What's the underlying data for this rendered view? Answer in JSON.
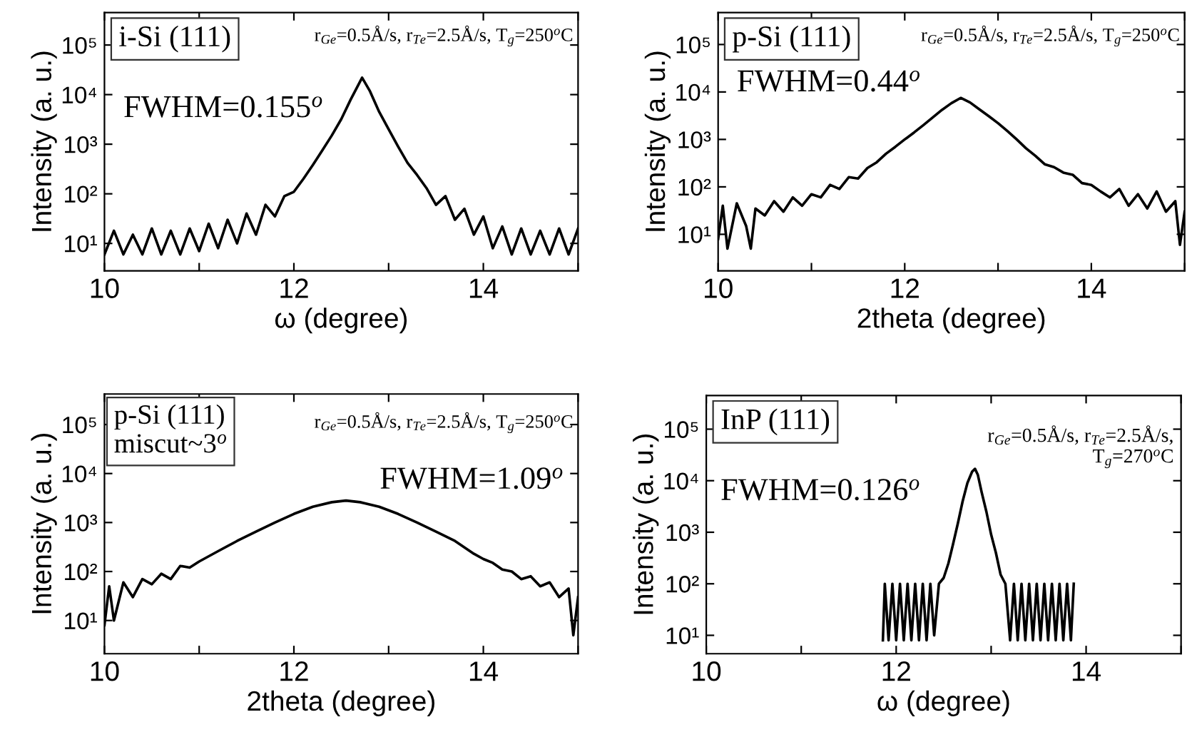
{
  "chart_data": [
    {
      "type": "line",
      "xlabel": "ω (degree)",
      "ylabel": "Intensity (a. u.)",
      "log": "y",
      "xlim": [
        10,
        15
      ],
      "ylim": [
        2.8,
        450000
      ],
      "xticks": [
        10,
        {
          "value": 11,
          "label": null
        },
        12,
        {
          "value": 13,
          "label": null
        },
        14,
        {
          "value": 15,
          "label": null
        }
      ],
      "yticks": [
        {
          "value": 10,
          "label": "10¹"
        },
        {
          "value": 100,
          "label": "10²"
        },
        {
          "value": 1000,
          "label": "10³"
        },
        {
          "value": 10000,
          "label": "10⁴"
        },
        {
          "value": 100000,
          "label": "10⁵"
        }
      ],
      "annotations": [
        "i-Si (111)",
        "r$_{Ge}$=0.5Å/s, r$_{Te}$=2.5Å/s, T$_{g}$=250$^{o}$C",
        "FWHM=0.155$^{o}$"
      ],
      "series": [
        {
          "color": "#000000",
          "x": [
            10.0,
            10.1,
            10.2,
            10.3,
            10.4,
            10.5,
            10.6,
            10.7,
            10.8,
            10.9,
            11.0,
            11.1,
            11.2,
            11.3,
            11.4,
            11.5,
            11.6,
            11.7,
            11.8,
            11.9,
            12.0,
            12.1,
            12.2,
            12.3,
            12.4,
            12.5,
            12.6,
            12.72,
            12.8,
            12.9,
            13.0,
            13.1,
            13.2,
            13.3,
            13.4,
            13.5,
            13.6,
            13.7,
            13.8,
            13.9,
            14.0,
            14.1,
            14.2,
            14.3,
            14.4,
            14.5,
            14.6,
            14.7,
            14.8,
            14.9,
            15.0
          ],
          "values": [
            6,
            18,
            6,
            15,
            6,
            20,
            6,
            18,
            6,
            20,
            7,
            25,
            8,
            30,
            10,
            40,
            15,
            60,
            35,
            90,
            110,
            200,
            380,
            750,
            1500,
            3200,
            8000,
            22000,
            12000,
            4500,
            2000,
            900,
            420,
            240,
            130,
            60,
            90,
            30,
            50,
            15,
            35,
            8,
            22,
            6,
            20,
            6,
            18,
            6,
            20,
            6,
            20
          ]
        }
      ]
    },
    {
      "type": "line",
      "xlabel": "2theta (degree)",
      "ylabel": "Intensity (a. u.)",
      "log": "y",
      "xlim": [
        10,
        15
      ],
      "ylim": [
        1.7,
        470000
      ],
      "xticks": [
        10,
        {
          "value": 11,
          "label": null
        },
        12,
        {
          "value": 13,
          "label": null
        },
        14,
        {
          "value": 15,
          "label": null
        }
      ],
      "yticks": [
        {
          "value": 10,
          "label": "10¹"
        },
        {
          "value": 100,
          "label": "10²"
        },
        {
          "value": 1000,
          "label": "10³"
        },
        {
          "value": 10000,
          "label": "10⁴"
        },
        {
          "value": 100000,
          "label": "10⁵"
        }
      ],
      "annotations": [
        "p-Si (111)",
        "r$_{Ge}$=0.5Å/s, r$_{Te}$=2.5Å/s, T$_{g}$=250$^{o}$C",
        "FWHM=0.44$^{o}$"
      ],
      "series": [
        {
          "color": "#000000",
          "x": [
            10.0,
            10.05,
            10.1,
            10.2,
            10.3,
            10.35,
            10.4,
            10.5,
            10.6,
            10.7,
            10.8,
            10.9,
            11.0,
            11.1,
            11.2,
            11.3,
            11.4,
            11.5,
            11.6,
            11.7,
            11.8,
            11.9,
            12.0,
            12.1,
            12.2,
            12.3,
            12.4,
            12.5,
            12.6,
            12.7,
            12.8,
            12.9,
            13.0,
            13.1,
            13.2,
            13.3,
            13.4,
            13.5,
            13.6,
            13.7,
            13.8,
            13.9,
            14.0,
            14.1,
            14.2,
            14.3,
            14.4,
            14.5,
            14.6,
            14.7,
            14.8,
            14.9,
            14.95,
            15.0
          ],
          "values": [
            8,
            40,
            5,
            45,
            15,
            5,
            35,
            25,
            50,
            30,
            60,
            40,
            70,
            60,
            110,
            90,
            160,
            150,
            250,
            330,
            500,
            700,
            1000,
            1400,
            2000,
            2900,
            4200,
            5800,
            7500,
            6000,
            4300,
            3100,
            2200,
            1500,
            1000,
            650,
            450,
            300,
            260,
            200,
            180,
            120,
            110,
            80,
            60,
            90,
            40,
            70,
            35,
            80,
            30,
            50,
            6,
            30
          ]
        }
      ]
    },
    {
      "type": "line",
      "xlabel": "2theta (degree)",
      "ylabel": "Intensity (a. u.)",
      "log": "y",
      "xlim": [
        10,
        15
      ],
      "ylim": [
        2.1,
        420000
      ],
      "xticks": [
        10,
        {
          "value": 11,
          "label": null
        },
        12,
        {
          "value": 13,
          "label": null
        },
        14,
        {
          "value": 15,
          "label": null
        }
      ],
      "yticks": [
        {
          "value": 10,
          "label": "10¹"
        },
        {
          "value": 100,
          "label": "10²"
        },
        {
          "value": 1000,
          "label": "10³"
        },
        {
          "value": 10000,
          "label": "10⁴"
        },
        {
          "value": 100000,
          "label": "10⁵"
        }
      ],
      "annotations": [
        "p-Si (111)\nmiscut~3$^{o}$",
        "r$_{Ge}$=0.5Å/s, r$_{Te}$=2.5Å/s, T$_{g}$=250$^{o}$C",
        "FWHM=1.09$^{o}$"
      ],
      "series": [
        {
          "color": "#000000",
          "x": [
            10.0,
            10.05,
            10.1,
            10.2,
            10.3,
            10.4,
            10.5,
            10.6,
            10.7,
            10.8,
            10.9,
            11.0,
            11.2,
            11.4,
            11.6,
            11.8,
            12.0,
            12.2,
            12.4,
            12.55,
            12.7,
            12.9,
            13.1,
            13.3,
            13.5,
            13.7,
            13.9,
            14.0,
            14.1,
            14.2,
            14.3,
            14.4,
            14.5,
            14.6,
            14.7,
            14.8,
            14.9,
            14.95,
            15.0
          ],
          "values": [
            8,
            50,
            10,
            60,
            30,
            70,
            55,
            90,
            70,
            130,
            120,
            160,
            260,
            420,
            650,
            1000,
            1500,
            2100,
            2600,
            2800,
            2600,
            2100,
            1500,
            1000,
            650,
            420,
            230,
            180,
            150,
            110,
            100,
            70,
            80,
            50,
            60,
            30,
            45,
            5,
            30
          ]
        }
      ]
    },
    {
      "type": "line",
      "xlabel": "ω (degree)",
      "ylabel": "Intensity (a. u.)",
      "log": "y",
      "xlim": [
        10,
        15
      ],
      "ylim": [
        4.4,
        450000
      ],
      "xticks": [
        10,
        {
          "value": 11,
          "label": null
        },
        12,
        {
          "value": 13,
          "label": null
        },
        14,
        {
          "value": 15,
          "label": null
        }
      ],
      "yticks": [
        {
          "value": 10,
          "label": "10¹"
        },
        {
          "value": 100,
          "label": "10²"
        },
        {
          "value": 1000,
          "label": "10³"
        },
        {
          "value": 10000,
          "label": "10⁴"
        },
        {
          "value": 100000,
          "label": "10⁵"
        }
      ],
      "annotations": [
        "InP (111)",
        "r$_{Ge}$=0.5Å/s, r$_{Te}$=2.5Å/s,\nT$_{g}$=270$^{o}$C",
        "FWHM=0.126$^{o}$"
      ],
      "series": [
        {
          "color": "#000000",
          "x": [
            11.86,
            11.88,
            11.92,
            11.96,
            12.0,
            12.04,
            12.08,
            12.12,
            12.16,
            12.2,
            12.24,
            12.28,
            12.32,
            12.36,
            12.4,
            12.45,
            12.5,
            12.55,
            12.6,
            12.65,
            12.7,
            12.75,
            12.8,
            12.83,
            12.86,
            12.9,
            12.95,
            13.0,
            13.05,
            13.1,
            13.15,
            13.2,
            13.24,
            13.28,
            13.32,
            13.36,
            13.4,
            13.44,
            13.48,
            13.52,
            13.56,
            13.6,
            13.64,
            13.68,
            13.72,
            13.76,
            13.8,
            13.84,
            13.87
          ],
          "values": [
            8,
            100,
            8,
            100,
            8,
            100,
            8,
            100,
            8,
            100,
            8,
            100,
            8,
            100,
            10,
            100,
            130,
            250,
            600,
            1500,
            4000,
            9000,
            15000,
            17000,
            13000,
            6000,
            2500,
            900,
            400,
            150,
            100,
            8,
            100,
            8,
            100,
            8,
            100,
            8,
            100,
            8,
            100,
            8,
            100,
            8,
            100,
            8,
            100,
            8,
            100
          ]
        }
      ]
    }
  ]
}
